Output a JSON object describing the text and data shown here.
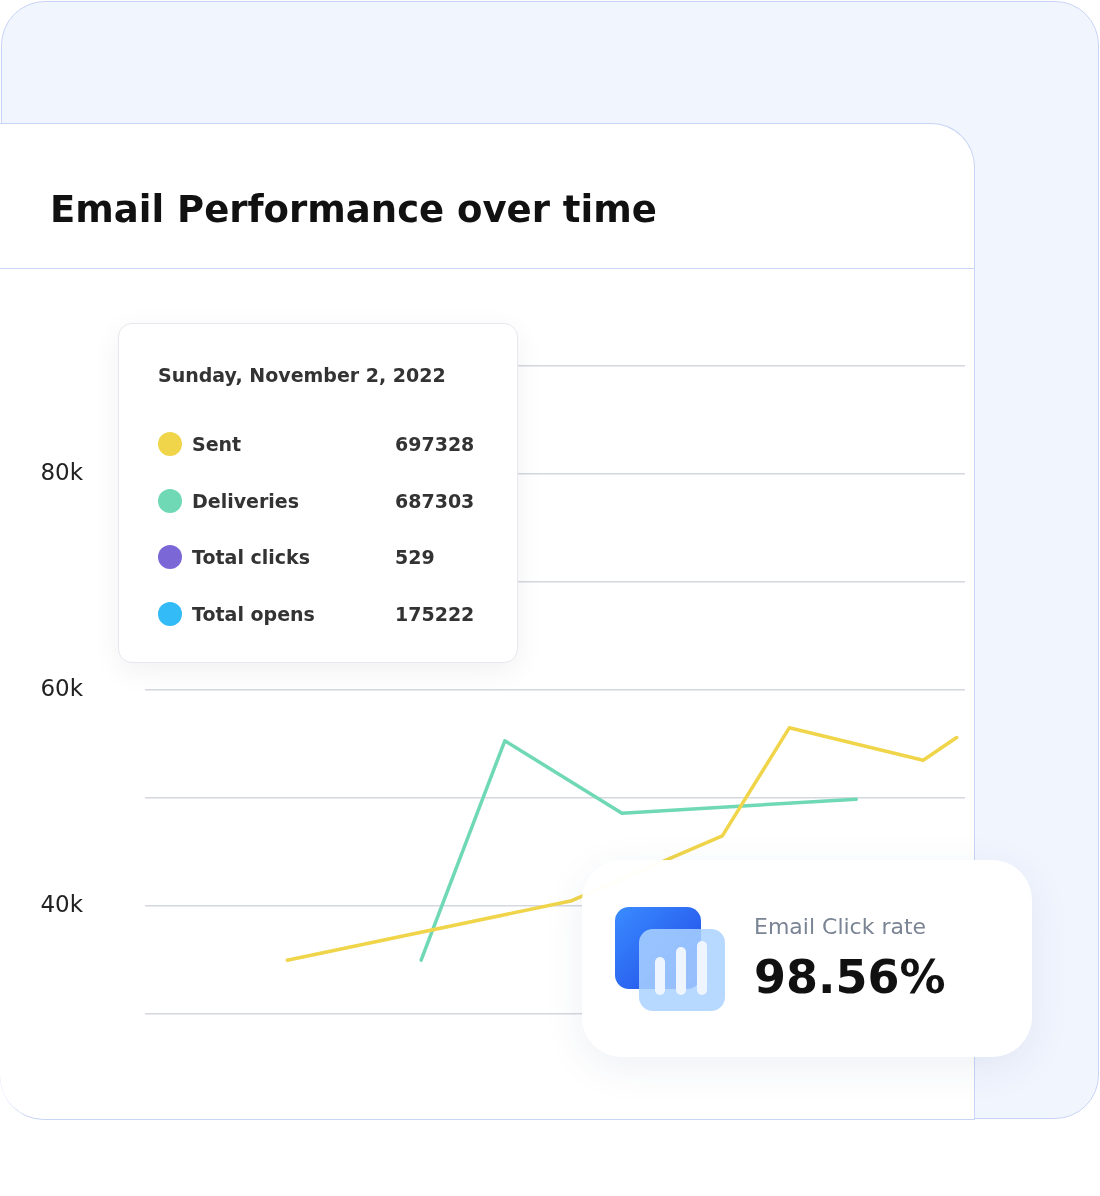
{
  "chart_data": {
    "type": "line",
    "title": "Email Performance over time",
    "legend_title": "Sunday, November 2, 2022",
    "categories": [
      null,
      null,
      null,
      null,
      null,
      null,
      null,
      null,
      null,
      null,
      null,
      null,
      null,
      null,
      null,
      null,
      null,
      null,
      null,
      null,
      null,
      null,
      null,
      null,
      null,
      null,
      null,
      null,
      null,
      null,
      null,
      null,
      null,
      null,
      null,
      null,
      null,
      null,
      null,
      null,
      null,
      null,
      null,
      null,
      null,
      null,
      null,
      null,
      null
    ],
    "series": [
      {
        "name": "Sent",
        "color": "#f0d54a",
        "values": [
          null,
          null,
          null,
          null,
          null,
          null,
          null,
          null,
          35000,
          null,
          null,
          null,
          null,
          null,
          null,
          null,
          null,
          null,
          null,
          null,
          null,
          null,
          null,
          null,
          null,
          40500,
          null,
          null,
          null,
          null,
          null,
          null,
          null,
          null,
          46500,
          null,
          null,
          null,
          56500,
          null,
          null,
          null,
          null,
          null,
          null,
          null,
          53500,
          null,
          55600
        ]
      },
      {
        "name": "Deliveries",
        "color": "#6fd8b4",
        "values": [
          null,
          null,
          null,
          null,
          null,
          null,
          null,
          null,
          null,
          null,
          null,
          null,
          null,
          null,
          null,
          null,
          35000,
          null,
          null,
          null,
          null,
          55300,
          null,
          null,
          null,
          null,
          null,
          null,
          48600,
          null,
          null,
          null,
          null,
          null,
          null,
          null,
          null,
          null,
          null,
          null,
          null,
          null,
          49900,
          null,
          null,
          null,
          null,
          null,
          null
        ]
      },
      {
        "name": "Total clicks",
        "color": "#7b68d6",
        "values": [
          null,
          null,
          null,
          null,
          null,
          null,
          null,
          null,
          null,
          null,
          null,
          null,
          null,
          null,
          null,
          null,
          null,
          null,
          null,
          null,
          null,
          null,
          null,
          null,
          null,
          null,
          null,
          null,
          null,
          null,
          null,
          null,
          null,
          null,
          null,
          null,
          null,
          null,
          null,
          null,
          null,
          null,
          null,
          null,
          null,
          null,
          null,
          null,
          null
        ]
      },
      {
        "name": "Total opens",
        "color": "#33bbf7",
        "values": [
          null,
          null,
          null,
          null,
          null,
          null,
          null,
          null,
          null,
          null,
          null,
          null,
          null,
          null,
          null,
          null,
          null,
          null,
          null,
          null,
          null,
          null,
          null,
          null,
          null,
          null,
          null,
          null,
          null,
          null,
          null,
          null,
          null,
          null,
          null,
          null,
          null,
          null,
          null,
          null,
          null,
          null,
          null,
          null,
          null,
          null,
          null,
          null,
          null
        ]
      }
    ],
    "ylim": [
      30000,
      90000
    ],
    "yticks": [
      {
        "value": 30000,
        "label": null
      },
      {
        "value": 40000,
        "label": "40k"
      },
      {
        "value": 50000,
        "label": null
      },
      {
        "value": 60000,
        "label": "60k"
      },
      {
        "value": 70000,
        "label": null
      },
      {
        "value": 80000,
        "label": "80k"
      },
      {
        "value": 90000,
        "label": null
      }
    ],
    "grid": "y",
    "tick_labels": "y",
    "legend": "top left",
    "marker": "none",
    "line_style": "solid",
    "annotations": [
      "697328",
      "687303",
      "529",
      "175222",
      "Email Click rate",
      "98.56%"
    ]
  }
}
